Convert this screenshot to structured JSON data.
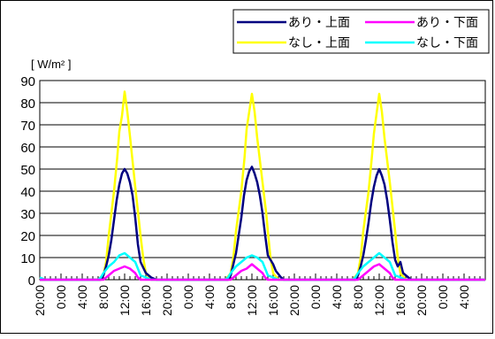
{
  "chart_data": {
    "type": "line",
    "title": "",
    "ylabel": "[ W/m² ]",
    "xlabel": "",
    "ylim": [
      0,
      90
    ],
    "yticks": [
      0,
      10,
      20,
      30,
      40,
      50,
      60,
      70,
      80,
      90
    ],
    "grid": true,
    "legend_position": "top-right",
    "x_hours": [
      0,
      84
    ],
    "x_ticks": [
      {
        "hour": 0,
        "label": "20:00"
      },
      {
        "hour": 4,
        "label": "0:00"
      },
      {
        "hour": 8,
        "label": "4:00"
      },
      {
        "hour": 12,
        "label": "8:00"
      },
      {
        "hour": 16,
        "label": "12:00"
      },
      {
        "hour": 20,
        "label": "16:00"
      },
      {
        "hour": 24,
        "label": "20:00"
      },
      {
        "hour": 28,
        "label": "0:00"
      },
      {
        "hour": 32,
        "label": "4:00"
      },
      {
        "hour": 36,
        "label": "8:00"
      },
      {
        "hour": 40,
        "label": "12:00"
      },
      {
        "hour": 44,
        "label": "16:00"
      },
      {
        "hour": 48,
        "label": "20:00"
      },
      {
        "hour": 52,
        "label": "0:00"
      },
      {
        "hour": 56,
        "label": "4:00"
      },
      {
        "hour": 60,
        "label": "8:00"
      },
      {
        "hour": 64,
        "label": "12:00"
      },
      {
        "hour": 68,
        "label": "16:00"
      },
      {
        "hour": 72,
        "label": "20:00"
      },
      {
        "hour": 76,
        "label": "0:00"
      },
      {
        "hour": 80,
        "label": "4:00"
      }
    ],
    "series": [
      {
        "name": "なし・上面",
        "color": "#ffff00",
        "points": [
          [
            0,
            1
          ],
          [
            1,
            0
          ],
          [
            3,
            0
          ],
          [
            11,
            0
          ],
          [
            12,
            2
          ],
          [
            12.5,
            8
          ],
          [
            13,
            20
          ],
          [
            14,
            40
          ],
          [
            14.6,
            55
          ],
          [
            15,
            67
          ],
          [
            15.5,
            74
          ],
          [
            16,
            85
          ],
          [
            16.5,
            76
          ],
          [
            17,
            65
          ],
          [
            18,
            42
          ],
          [
            19,
            20
          ],
          [
            19.5,
            10
          ],
          [
            20,
            3
          ],
          [
            21,
            0
          ],
          [
            35,
            0
          ],
          [
            36,
            3
          ],
          [
            36.5,
            10
          ],
          [
            37,
            22
          ],
          [
            38,
            40
          ],
          [
            38.6,
            55
          ],
          [
            39,
            68
          ],
          [
            39.5,
            76
          ],
          [
            40,
            84
          ],
          [
            40.5,
            76
          ],
          [
            41,
            64
          ],
          [
            42,
            44
          ],
          [
            42.7,
            30
          ],
          [
            43,
            22
          ],
          [
            43.5,
            10
          ],
          [
            44,
            3
          ],
          [
            45,
            0
          ],
          [
            59,
            0
          ],
          [
            60,
            3
          ],
          [
            60.5,
            10
          ],
          [
            61,
            22
          ],
          [
            62,
            40
          ],
          [
            62.6,
            55
          ],
          [
            63,
            66
          ],
          [
            63.5,
            75
          ],
          [
            64,
            84
          ],
          [
            64.5,
            76
          ],
          [
            65,
            64
          ],
          [
            66,
            44
          ],
          [
            67,
            22
          ],
          [
            67.5,
            10
          ],
          [
            68,
            3
          ],
          [
            69,
            0
          ],
          [
            84,
            0
          ]
        ]
      },
      {
        "name": "あり・上面",
        "color": "#000080",
        "points": [
          [
            0,
            0
          ],
          [
            3,
            0
          ],
          [
            11.5,
            0
          ],
          [
            12,
            2
          ],
          [
            12.5,
            6
          ],
          [
            13,
            11
          ],
          [
            13.5,
            18
          ],
          [
            14,
            27
          ],
          [
            14.5,
            36
          ],
          [
            15,
            43
          ],
          [
            15.5,
            48
          ],
          [
            16,
            50
          ],
          [
            16.5,
            48
          ],
          [
            17,
            44
          ],
          [
            17.5,
            38
          ],
          [
            18,
            28
          ],
          [
            18.5,
            16
          ],
          [
            19,
            8
          ],
          [
            20,
            3
          ],
          [
            21,
            1
          ],
          [
            22,
            0
          ],
          [
            35.5,
            0
          ],
          [
            36,
            2
          ],
          [
            36.5,
            7
          ],
          [
            37,
            12
          ],
          [
            37.5,
            20
          ],
          [
            38,
            28
          ],
          [
            38.5,
            38
          ],
          [
            39,
            45
          ],
          [
            39.5,
            49
          ],
          [
            40,
            51
          ],
          [
            40.5,
            48
          ],
          [
            41,
            44
          ],
          [
            41.5,
            38
          ],
          [
            42,
            30
          ],
          [
            42.5,
            20
          ],
          [
            43,
            11
          ],
          [
            43.5,
            9
          ],
          [
            44,
            7
          ],
          [
            44.5,
            4
          ],
          [
            45.5,
            1
          ],
          [
            46,
            0
          ],
          [
            59.5,
            0
          ],
          [
            60,
            2
          ],
          [
            60.5,
            6
          ],
          [
            61,
            11
          ],
          [
            61.5,
            18
          ],
          [
            62,
            26
          ],
          [
            62.5,
            35
          ],
          [
            63,
            42
          ],
          [
            63.5,
            47
          ],
          [
            64,
            50
          ],
          [
            64.5,
            47
          ],
          [
            65,
            43
          ],
          [
            65.5,
            36
          ],
          [
            66,
            27
          ],
          [
            66.5,
            17
          ],
          [
            67,
            9
          ],
          [
            67.5,
            6
          ],
          [
            68,
            8
          ],
          [
            68.5,
            3
          ],
          [
            69.5,
            1
          ],
          [
            70,
            0
          ],
          [
            84,
            0
          ]
        ]
      },
      {
        "name": "なし・下面",
        "color": "#00ffff",
        "points": [
          [
            0,
            1
          ],
          [
            1,
            0
          ],
          [
            11,
            0
          ],
          [
            11.5,
            1
          ],
          [
            12,
            3
          ],
          [
            13,
            6
          ],
          [
            14,
            8
          ],
          [
            15,
            11
          ],
          [
            16,
            12
          ],
          [
            17,
            10
          ],
          [
            18,
            8
          ],
          [
            18.5,
            5
          ],
          [
            19,
            2
          ],
          [
            20,
            1
          ],
          [
            21,
            0
          ],
          [
            35,
            0
          ],
          [
            35.5,
            1
          ],
          [
            36,
            3
          ],
          [
            37,
            6
          ],
          [
            38,
            8
          ],
          [
            39,
            10
          ],
          [
            40,
            11
          ],
          [
            41,
            10
          ],
          [
            42,
            8
          ],
          [
            42.5,
            5
          ],
          [
            43,
            2
          ],
          [
            44,
            1
          ],
          [
            45,
            0
          ],
          [
            59,
            0
          ],
          [
            59.5,
            1
          ],
          [
            60,
            3
          ],
          [
            61,
            6
          ],
          [
            62,
            8
          ],
          [
            63,
            10
          ],
          [
            64,
            12
          ],
          [
            65,
            10
          ],
          [
            66,
            8
          ],
          [
            66.5,
            5
          ],
          [
            67,
            2
          ],
          [
            68,
            1
          ],
          [
            69,
            0
          ],
          [
            84,
            0
          ]
        ]
      },
      {
        "name": "あり・下面",
        "color": "#ff00ff",
        "points": [
          [
            0,
            0
          ],
          [
            12,
            0
          ],
          [
            12.5,
            1
          ],
          [
            13,
            2
          ],
          [
            14,
            4
          ],
          [
            15,
            5
          ],
          [
            16,
            6
          ],
          [
            17,
            5
          ],
          [
            18,
            3
          ],
          [
            18.5,
            1
          ],
          [
            19,
            0
          ],
          [
            36,
            0
          ],
          [
            36.5,
            1
          ],
          [
            37,
            2
          ],
          [
            38,
            4
          ],
          [
            39,
            5
          ],
          [
            40,
            7
          ],
          [
            41,
            5
          ],
          [
            42,
            3
          ],
          [
            42.5,
            1
          ],
          [
            43,
            0
          ],
          [
            60,
            0
          ],
          [
            60.5,
            1
          ],
          [
            61,
            2
          ],
          [
            62,
            4
          ],
          [
            63,
            6
          ],
          [
            64,
            7
          ],
          [
            65,
            5
          ],
          [
            66,
            3
          ],
          [
            66.5,
            1
          ],
          [
            67,
            0
          ],
          [
            84,
            0
          ]
        ]
      }
    ],
    "legend": [
      {
        "label": "あり・上面",
        "color": "#000080"
      },
      {
        "label": "あり・下面",
        "color": "#ff00ff"
      },
      {
        "label": "なし・上面",
        "color": "#ffff00"
      },
      {
        "label": "なし・下面",
        "color": "#00ffff"
      }
    ]
  }
}
